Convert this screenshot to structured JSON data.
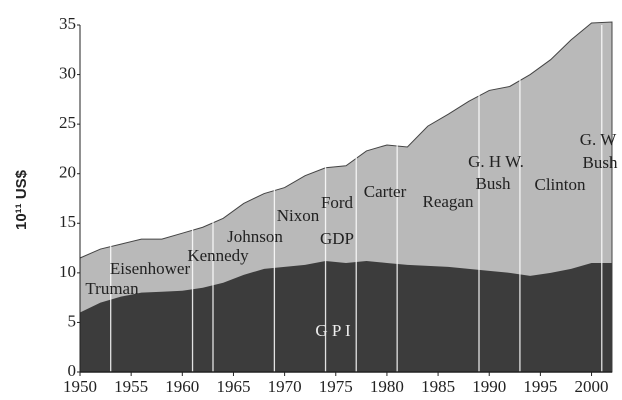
{
  "chart_data": {
    "type": "area",
    "y_label": "10¹¹ US$",
    "x": [
      1950,
      1952,
      1954,
      1956,
      1958,
      1960,
      1962,
      1964,
      1966,
      1968,
      1970,
      1972,
      1974,
      1976,
      1978,
      1980,
      1982,
      1984,
      1986,
      1988,
      1990,
      1992,
      1994,
      1996,
      1998,
      2000,
      2002
    ],
    "series": [
      {
        "name": "GDP",
        "color": "#b9b9b9",
        "values": [
          11.5,
          12.4,
          12.9,
          13.4,
          13.4,
          14.0,
          14.6,
          15.5,
          17.0,
          18.0,
          18.6,
          19.8,
          20.6,
          20.8,
          22.3,
          22.9,
          22.7,
          24.8,
          26.0,
          27.3,
          28.4,
          28.8,
          30.0,
          31.5,
          33.5,
          35.2,
          35.3
        ]
      },
      {
        "name": "G P I",
        "color": "#3c3c3c",
        "values": [
          6.0,
          7.0,
          7.6,
          8.0,
          8.1,
          8.2,
          8.5,
          9.0,
          9.8,
          10.4,
          10.6,
          10.8,
          11.2,
          11.0,
          11.2,
          11.0,
          10.8,
          10.7,
          10.6,
          10.4,
          10.2,
          10.0,
          9.7,
          10.0,
          10.4,
          11.0,
          11.0
        ]
      }
    ],
    "term_starts": [
      1953,
      1961,
      1963,
      1969,
      1974,
      1977,
      1981,
      1989,
      1993,
      2001
    ],
    "annotations": [
      "Truman",
      "Eisenhower",
      "Kennedy",
      "Johnson",
      "Nixon",
      "Ford",
      "Carter",
      "Reagan",
      "G. H W.",
      "Bush",
      "Clinton",
      "G. W",
      "Bush"
    ],
    "xlim": [
      1950,
      2002
    ],
    "ylim": [
      0,
      35
    ],
    "xticks": [
      1950,
      1955,
      1960,
      1965,
      1970,
      1975,
      1980,
      1985,
      1990,
      1995,
      2000
    ],
    "yticks": [
      0,
      5,
      10,
      15,
      20,
      25,
      30,
      35
    ]
  }
}
